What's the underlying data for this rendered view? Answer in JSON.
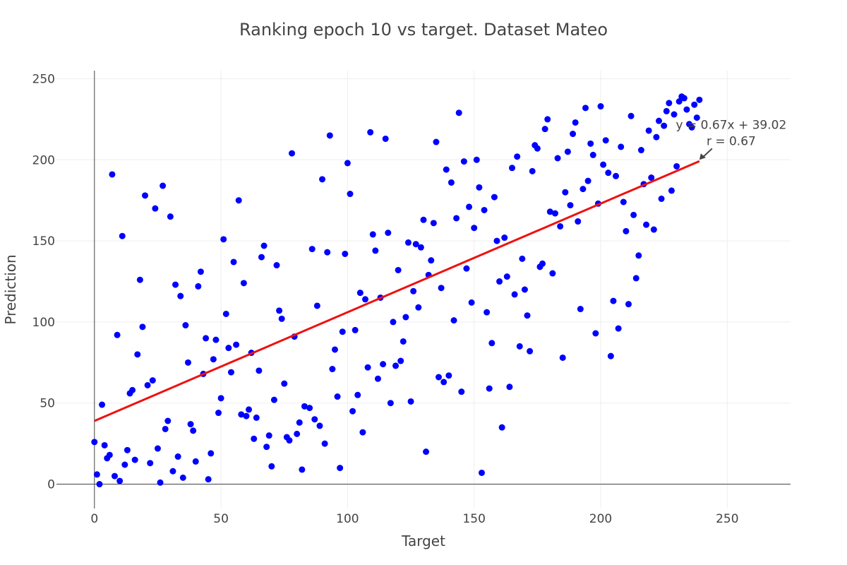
{
  "chart_data": {
    "type": "scatter",
    "title": "Ranking epoch 10 vs target. Dataset Mateo",
    "xlabel": "Target",
    "ylabel": "Prediction",
    "xlim": [
      -15,
      275
    ],
    "ylim": [
      -15,
      255
    ],
    "xticks": [
      0,
      50,
      100,
      150,
      200,
      250
    ],
    "yticks": [
      0,
      50,
      100,
      150,
      200,
      250
    ],
    "grid": true,
    "colors": {
      "points": "#0000ff",
      "fit_line": "#ee1111",
      "zero_line": "#444444"
    },
    "fit": {
      "slope": 0.67,
      "intercept": 39.02,
      "x_range": [
        0,
        239
      ]
    },
    "annotations": [
      {
        "text": "y = 0.67x + 39.02",
        "x": 239,
        "y": 200
      },
      {
        "text": "r = 0.67",
        "x": 239,
        "y": 200
      }
    ],
    "points": [
      [
        0,
        26
      ],
      [
        1,
        6
      ],
      [
        2,
        0
      ],
      [
        3,
        49
      ],
      [
        4,
        24
      ],
      [
        5,
        16
      ],
      [
        6,
        18
      ],
      [
        7,
        191
      ],
      [
        8,
        5
      ],
      [
        9,
        92
      ],
      [
        10,
        2
      ],
      [
        11,
        153
      ],
      [
        12,
        12
      ],
      [
        13,
        21
      ],
      [
        14,
        56
      ],
      [
        15,
        58
      ],
      [
        16,
        15
      ],
      [
        17,
        80
      ],
      [
        18,
        126
      ],
      [
        19,
        97
      ],
      [
        20,
        178
      ],
      [
        21,
        61
      ],
      [
        22,
        13
      ],
      [
        23,
        64
      ],
      [
        24,
        170
      ],
      [
        25,
        22
      ],
      [
        26,
        1
      ],
      [
        27,
        184
      ],
      [
        28,
        34
      ],
      [
        29,
        39
      ],
      [
        30,
        165
      ],
      [
        31,
        8
      ],
      [
        32,
        123
      ],
      [
        33,
        17
      ],
      [
        34,
        116
      ],
      [
        35,
        4
      ],
      [
        36,
        98
      ],
      [
        37,
        75
      ],
      [
        38,
        37
      ],
      [
        39,
        33
      ],
      [
        40,
        14
      ],
      [
        41,
        122
      ],
      [
        42,
        131
      ],
      [
        43,
        68
      ],
      [
        44,
        90
      ],
      [
        45,
        3
      ],
      [
        46,
        19
      ],
      [
        47,
        77
      ],
      [
        48,
        89
      ],
      [
        49,
        44
      ],
      [
        50,
        53
      ],
      [
        51,
        151
      ],
      [
        52,
        105
      ],
      [
        53,
        84
      ],
      [
        54,
        69
      ],
      [
        55,
        137
      ],
      [
        56,
        86
      ],
      [
        57,
        175
      ],
      [
        58,
        43
      ],
      [
        59,
        124
      ],
      [
        60,
        42
      ],
      [
        61,
        46
      ],
      [
        62,
        81
      ],
      [
        63,
        28
      ],
      [
        64,
        41
      ],
      [
        65,
        70
      ],
      [
        66,
        140
      ],
      [
        67,
        147
      ],
      [
        68,
        23
      ],
      [
        69,
        30
      ],
      [
        70,
        11
      ],
      [
        71,
        52
      ],
      [
        72,
        135
      ],
      [
        73,
        107
      ],
      [
        74,
        102
      ],
      [
        75,
        62
      ],
      [
        76,
        29
      ],
      [
        77,
        27
      ],
      [
        78,
        204
      ],
      [
        79,
        91
      ],
      [
        80,
        31
      ],
      [
        81,
        38
      ],
      [
        82,
        9
      ],
      [
        83,
        48
      ],
      [
        85,
        47
      ],
      [
        86,
        145
      ],
      [
        87,
        40
      ],
      [
        88,
        110
      ],
      [
        89,
        36
      ],
      [
        90,
        188
      ],
      [
        91,
        25
      ],
      [
        92,
        143
      ],
      [
        93,
        215
      ],
      [
        94,
        71
      ],
      [
        95,
        83
      ],
      [
        96,
        54
      ],
      [
        97,
        10
      ],
      [
        98,
        94
      ],
      [
        99,
        142
      ],
      [
        100,
        198
      ],
      [
        101,
        179
      ],
      [
        102,
        45
      ],
      [
        103,
        95
      ],
      [
        104,
        55
      ],
      [
        105,
        118
      ],
      [
        106,
        32
      ],
      [
        107,
        114
      ],
      [
        108,
        72
      ],
      [
        109,
        217
      ],
      [
        110,
        154
      ],
      [
        111,
        144
      ],
      [
        112,
        65
      ],
      [
        113,
        115
      ],
      [
        114,
        74
      ],
      [
        115,
        213
      ],
      [
        116,
        155
      ],
      [
        117,
        50
      ],
      [
        118,
        100
      ],
      [
        119,
        73
      ],
      [
        120,
        132
      ],
      [
        121,
        76
      ],
      [
        122,
        88
      ],
      [
        123,
        103
      ],
      [
        124,
        149
      ],
      [
        125,
        51
      ],
      [
        126,
        119
      ],
      [
        127,
        148
      ],
      [
        128,
        109
      ],
      [
        129,
        146
      ],
      [
        130,
        163
      ],
      [
        131,
        20
      ],
      [
        132,
        129
      ],
      [
        133,
        138
      ],
      [
        134,
        161
      ],
      [
        135,
        211
      ],
      [
        136,
        66
      ],
      [
        137,
        121
      ],
      [
        138,
        63
      ],
      [
        139,
        194
      ],
      [
        140,
        67
      ],
      [
        141,
        186
      ],
      [
        142,
        101
      ],
      [
        143,
        164
      ],
      [
        144,
        229
      ],
      [
        145,
        57
      ],
      [
        146,
        199
      ],
      [
        147,
        133
      ],
      [
        148,
        171
      ],
      [
        149,
        112
      ],
      [
        150,
        158
      ],
      [
        151,
        200
      ],
      [
        152,
        183
      ],
      [
        153,
        7
      ],
      [
        154,
        169
      ],
      [
        155,
        106
      ],
      [
        156,
        59
      ],
      [
        157,
        87
      ],
      [
        158,
        177
      ],
      [
        159,
        150
      ],
      [
        160,
        125
      ],
      [
        161,
        35
      ],
      [
        162,
        152
      ],
      [
        163,
        128
      ],
      [
        164,
        60
      ],
      [
        165,
        195
      ],
      [
        166,
        117
      ],
      [
        167,
        202
      ],
      [
        168,
        85
      ],
      [
        169,
        139
      ],
      [
        170,
        120
      ],
      [
        171,
        104
      ],
      [
        172,
        82
      ],
      [
        173,
        193
      ],
      [
        174,
        209
      ],
      [
        175,
        207
      ],
      [
        176,
        134
      ],
      [
        177,
        136
      ],
      [
        178,
        219
      ],
      [
        179,
        225
      ],
      [
        180,
        168
      ],
      [
        181,
        130
      ],
      [
        182,
        167
      ],
      [
        183,
        201
      ],
      [
        184,
        159
      ],
      [
        185,
        78
      ],
      [
        186,
        180
      ],
      [
        187,
        205
      ],
      [
        188,
        172
      ],
      [
        189,
        216
      ],
      [
        190,
        223
      ],
      [
        191,
        162
      ],
      [
        192,
        108
      ],
      [
        193,
        182
      ],
      [
        194,
        232
      ],
      [
        195,
        187
      ],
      [
        196,
        210
      ],
      [
        197,
        203
      ],
      [
        198,
        93
      ],
      [
        199,
        173
      ],
      [
        200,
        233
      ],
      [
        201,
        197
      ],
      [
        202,
        212
      ],
      [
        203,
        192
      ],
      [
        204,
        79
      ],
      [
        205,
        113
      ],
      [
        206,
        190
      ],
      [
        207,
        96
      ],
      [
        208,
        208
      ],
      [
        209,
        174
      ],
      [
        210,
        156
      ],
      [
        211,
        111
      ],
      [
        212,
        227
      ],
      [
        213,
        166
      ],
      [
        214,
        127
      ],
      [
        215,
        141
      ],
      [
        216,
        206
      ],
      [
        217,
        185
      ],
      [
        218,
        160
      ],
      [
        219,
        218
      ],
      [
        220,
        189
      ],
      [
        221,
        157
      ],
      [
        222,
        214
      ],
      [
        223,
        224
      ],
      [
        224,
        176
      ],
      [
        225,
        221
      ],
      [
        226,
        230
      ],
      [
        227,
        235
      ],
      [
        228,
        181
      ],
      [
        229,
        228
      ],
      [
        230,
        196
      ],
      [
        231,
        236
      ],
      [
        232,
        239
      ],
      [
        233,
        238
      ],
      [
        234,
        231
      ],
      [
        235,
        222
      ],
      [
        236,
        220
      ],
      [
        237,
        234
      ],
      [
        238,
        226
      ],
      [
        239,
        237
      ]
    ]
  }
}
